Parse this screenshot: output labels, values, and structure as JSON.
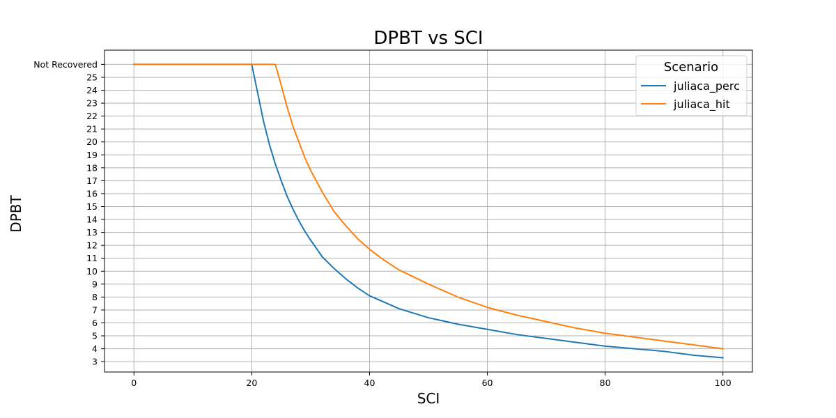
{
  "chart_data": {
    "type": "line",
    "title": "DPBT vs SCI",
    "xlabel": "SCI",
    "ylabel": "DPBT",
    "xlim": [
      -5,
      105
    ],
    "ylim": [
      2.2,
      27.1
    ],
    "grid": true,
    "x_ticks": [
      0,
      20,
      40,
      60,
      80,
      100
    ],
    "y_ticks": [
      {
        "value": 3,
        "label": "3"
      },
      {
        "value": 4,
        "label": "4"
      },
      {
        "value": 5,
        "label": "5"
      },
      {
        "value": 6,
        "label": "6"
      },
      {
        "value": 7,
        "label": "7"
      },
      {
        "value": 8,
        "label": "8"
      },
      {
        "value": 9,
        "label": "9"
      },
      {
        "value": 10,
        "label": "10"
      },
      {
        "value": 11,
        "label": "11"
      },
      {
        "value": 12,
        "label": "12"
      },
      {
        "value": 13,
        "label": "13"
      },
      {
        "value": 14,
        "label": "14"
      },
      {
        "value": 15,
        "label": "15"
      },
      {
        "value": 16,
        "label": "16"
      },
      {
        "value": 17,
        "label": "17"
      },
      {
        "value": 18,
        "label": "18"
      },
      {
        "value": 19,
        "label": "19"
      },
      {
        "value": 20,
        "label": "20"
      },
      {
        "value": 21,
        "label": "21"
      },
      {
        "value": 22,
        "label": "22"
      },
      {
        "value": 23,
        "label": "23"
      },
      {
        "value": 24,
        "label": "24"
      },
      {
        "value": 25,
        "label": "25"
      },
      {
        "value": 26,
        "label": "Not Recovered"
      }
    ],
    "legend": {
      "title": "Scenario",
      "position": "top-right"
    },
    "series": [
      {
        "name": "juliaca_perc",
        "color": "#1f77b4",
        "x": [
          0,
          20,
          21,
          22,
          23,
          24,
          25,
          26,
          27,
          28,
          29,
          30,
          32,
          34,
          36,
          38,
          40,
          42,
          45,
          50,
          55,
          60,
          65,
          70,
          75,
          80,
          85,
          90,
          95,
          100
        ],
        "y": [
          26,
          26,
          23.8,
          21.6,
          19.8,
          18.3,
          17.0,
          15.8,
          14.8,
          13.9,
          13.1,
          12.4,
          11.1,
          10.2,
          9.4,
          8.7,
          8.1,
          7.7,
          7.1,
          6.4,
          5.9,
          5.5,
          5.1,
          4.8,
          4.5,
          4.2,
          4.0,
          3.8,
          3.5,
          3.3
        ]
      },
      {
        "name": "juliaca_hit",
        "color": "#ff7f0e",
        "x": [
          0,
          24,
          25,
          26,
          27,
          28,
          29,
          30,
          32,
          34,
          36,
          38,
          40,
          42,
          45,
          50,
          55,
          60,
          65,
          70,
          75,
          80,
          85,
          90,
          95,
          100
        ],
        "y": [
          26,
          26,
          24.4,
          22.7,
          21.2,
          20.0,
          18.8,
          17.8,
          16.1,
          14.6,
          13.5,
          12.5,
          11.7,
          11.0,
          10.1,
          9.0,
          8.0,
          7.2,
          6.6,
          6.1,
          5.6,
          5.2,
          4.9,
          4.6,
          4.3,
          4.0
        ]
      }
    ]
  }
}
